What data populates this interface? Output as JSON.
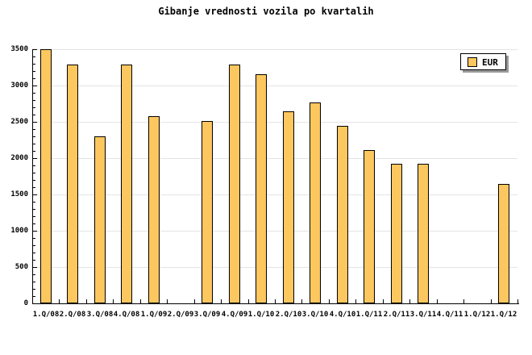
{
  "title": "Gibanje vrednosti vozila po kvartalih",
  "legend": {
    "label": "EUR"
  },
  "colors": {
    "bar_fill": "#FDC75F",
    "bar_border": "#000000",
    "grid": "#E4E4E4",
    "axis": "#000000",
    "legend_bg": "#FDFDFD",
    "legend_shadow": "#999999"
  },
  "chart_data": {
    "type": "bar",
    "title": "Gibanje vrednosti vozila po kvartalih",
    "xlabel": "",
    "ylabel": "",
    "categories": [
      "1.Q/08",
      "2.Q/08",
      "3.Q/08",
      "4.Q/08",
      "1.Q/09",
      "2.Q/09",
      "3.Q/09",
      "4.Q/09",
      "1.Q/10",
      "2.Q/10",
      "3.Q/10",
      "4.Q/10",
      "1.Q/11",
      "2.Q/11",
      "3.Q/11",
      "4.Q/11",
      "1.Q/12",
      "1.Q/12"
    ],
    "series": [
      {
        "name": "EUR",
        "values": [
          3500,
          3290,
          2300,
          3290,
          2580,
          null,
          2510,
          3290,
          3160,
          2640,
          2770,
          2440,
          2110,
          1920,
          1920,
          null,
          null,
          1650
        ]
      }
    ],
    "ylim": [
      0,
      3500
    ],
    "yticks": [
      0,
      500,
      1000,
      1500,
      2000,
      2500,
      3000,
      3500
    ],
    "yminor_step": 100,
    "grid": "horizontal",
    "legend_position": "top-right"
  }
}
